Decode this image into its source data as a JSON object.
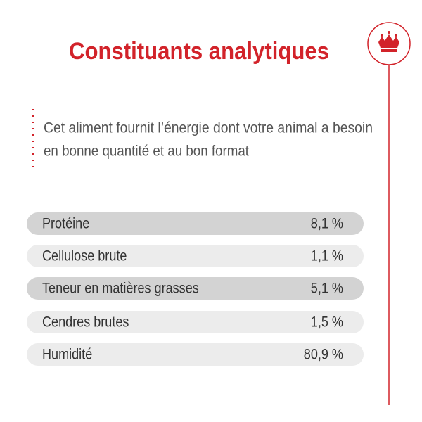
{
  "title": "Constituants analytiques",
  "intro": [
    "Cet aliment fournit l’énergie dont votre animal a besoin",
    "en bonne quantité et au bon format"
  ],
  "table": {
    "rows": [
      [
        "Protéine",
        "8,1 %"
      ],
      [
        "Cellulose brute",
        "1,1 %"
      ],
      [
        "Teneur en matières grasses",
        "5,1 %"
      ],
      [
        "Cendres brutes",
        "1,5 %"
      ],
      [
        "Humidité",
        "80,9 %"
      ]
    ]
  }
}
